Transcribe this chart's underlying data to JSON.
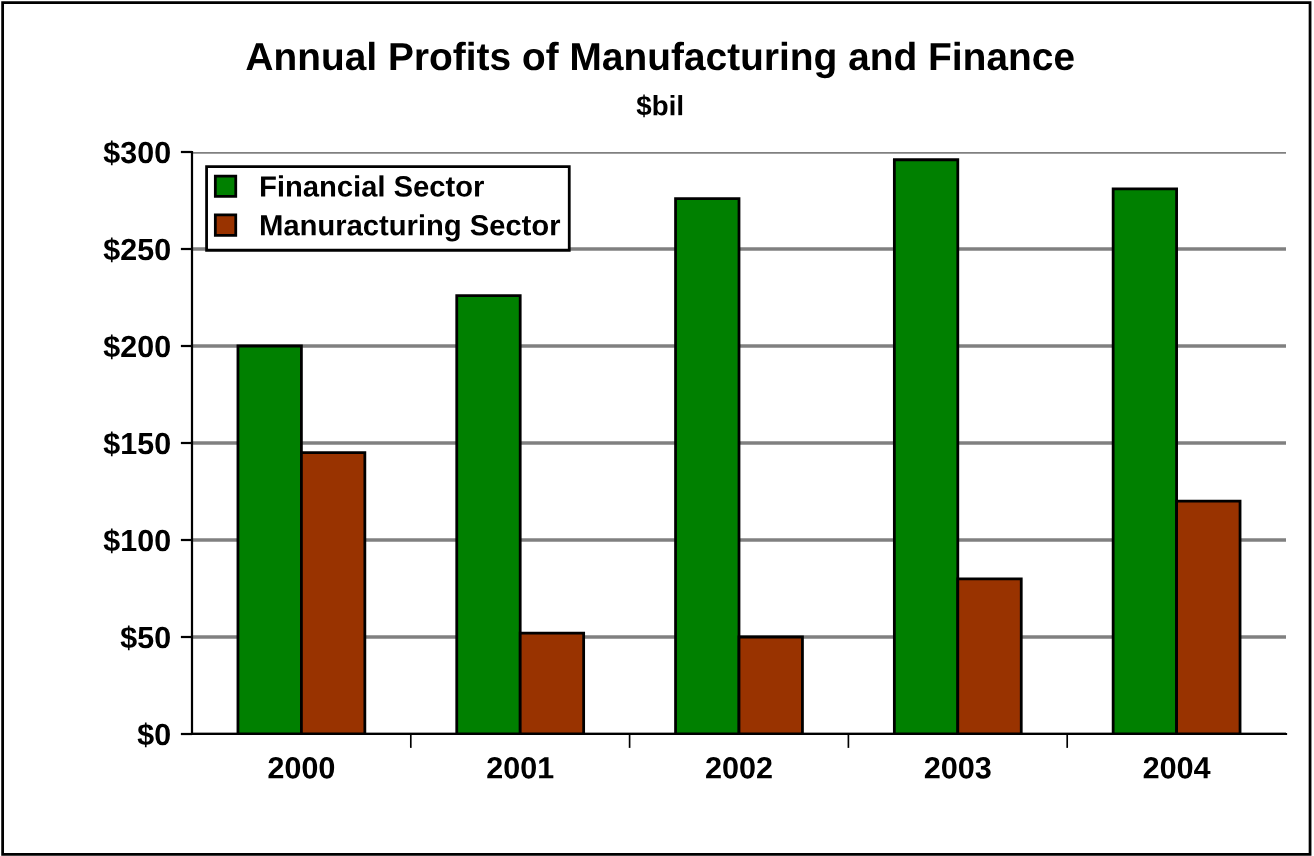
{
  "chart_data": {
    "type": "bar",
    "title": "Annual Profits of Manufacturing and Finance",
    "subtitle": "$bil",
    "categories": [
      "2000",
      "2001",
      "2002",
      "2003",
      "2004"
    ],
    "series": [
      {
        "name": "Financial Sector",
        "color": "#008000",
        "values": [
          200,
          226,
          276,
          296,
          281
        ]
      },
      {
        "name": "Manuracturing Sector",
        "color": "#993300",
        "values": [
          145,
          52,
          50,
          80,
          120
        ]
      }
    ],
    "ylim": [
      0,
      300
    ],
    "yticks": [
      {
        "value": 0,
        "label": "$0"
      },
      {
        "value": 50,
        "label": "$50"
      },
      {
        "value": 100,
        "label": "$100"
      },
      {
        "value": 150,
        "label": "$150"
      },
      {
        "value": 200,
        "label": "$200"
      },
      {
        "value": 250,
        "label": "$250"
      },
      {
        "value": 300,
        "label": "$300"
      }
    ],
    "grid": "y",
    "legend": "top left"
  }
}
